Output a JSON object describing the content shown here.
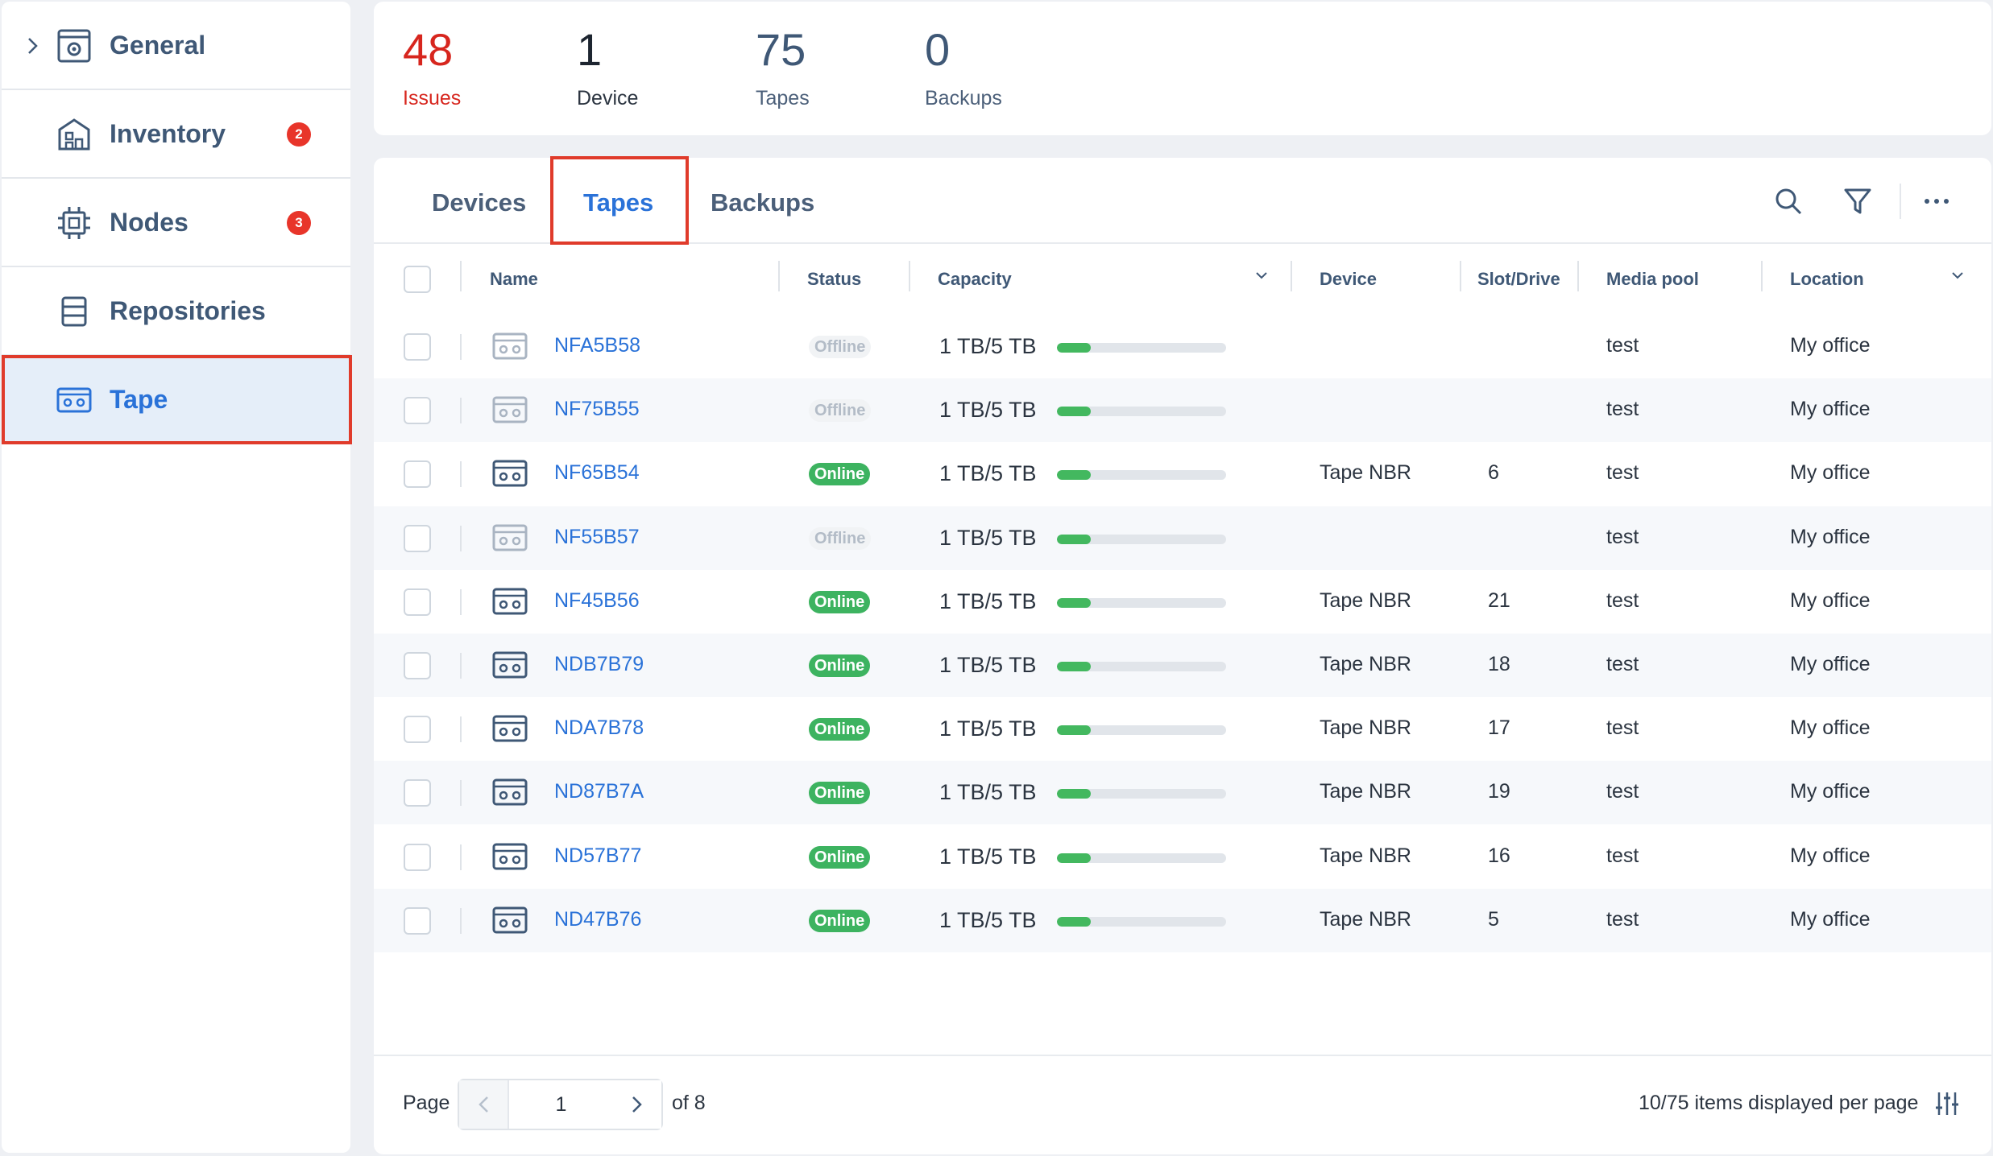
{
  "sidebar": {
    "items": [
      {
        "label": "General",
        "icon": "settings-panel-icon",
        "badge": null,
        "expandable": true
      },
      {
        "label": "Inventory",
        "icon": "building-icon",
        "badge": "2"
      },
      {
        "label": "Nodes",
        "icon": "chip-icon",
        "badge": "3"
      },
      {
        "label": "Repositories",
        "icon": "database-icon",
        "badge": null
      },
      {
        "label": "Tape",
        "icon": "tape-icon",
        "badge": null,
        "active": true
      }
    ]
  },
  "summary": {
    "issues": {
      "value": "48",
      "label": "Issues",
      "color": "#d7261e"
    },
    "device": {
      "value": "1",
      "label": "Device"
    },
    "tapes": {
      "value": "75",
      "label": "Tapes"
    },
    "backups": {
      "value": "0",
      "label": "Backups"
    }
  },
  "tabs": [
    "Devices",
    "Tapes",
    "Backups"
  ],
  "active_tab": "Tapes",
  "toolbar": {
    "search": "search-icon",
    "filter": "filter-icon",
    "more": "more-icon"
  },
  "table": {
    "columns": {
      "name": "Name",
      "status": "Status",
      "capacity": "Capacity",
      "device": "Device",
      "slot": "Slot/Drive",
      "pool": "Media pool",
      "location": "Location"
    },
    "rows": [
      {
        "name": "NFA5B58",
        "status": "Offline",
        "capacity": "1 TB/5 TB",
        "used": 0.2,
        "device": "",
        "slot": "",
        "pool": "test",
        "location": "My office"
      },
      {
        "name": "NF75B55",
        "status": "Offline",
        "capacity": "1 TB/5 TB",
        "used": 0.2,
        "device": "",
        "slot": "",
        "pool": "test",
        "location": "My office"
      },
      {
        "name": "NF65B54",
        "status": "Online",
        "capacity": "1 TB/5 TB",
        "used": 0.2,
        "device": "Tape NBR",
        "slot": "6",
        "pool": "test",
        "location": "My office"
      },
      {
        "name": "NF55B57",
        "status": "Offline",
        "capacity": "1 TB/5 TB",
        "used": 0.2,
        "device": "",
        "slot": "",
        "pool": "test",
        "location": "My office"
      },
      {
        "name": "NF45B56",
        "status": "Online",
        "capacity": "1 TB/5 TB",
        "used": 0.2,
        "device": "Tape NBR",
        "slot": "21",
        "pool": "test",
        "location": "My office"
      },
      {
        "name": "NDB7B79",
        "status": "Online",
        "capacity": "1 TB/5 TB",
        "used": 0.2,
        "device": "Tape NBR",
        "slot": "18",
        "pool": "test",
        "location": "My office"
      },
      {
        "name": "NDA7B78",
        "status": "Online",
        "capacity": "1 TB/5 TB",
        "used": 0.2,
        "device": "Tape NBR",
        "slot": "17",
        "pool": "test",
        "location": "My office"
      },
      {
        "name": "ND87B7A",
        "status": "Online",
        "capacity": "1 TB/5 TB",
        "used": 0.2,
        "device": "Tape NBR",
        "slot": "19",
        "pool": "test",
        "location": "My office"
      },
      {
        "name": "ND57B77",
        "status": "Online",
        "capacity": "1 TB/5 TB",
        "used": 0.2,
        "device": "Tape NBR",
        "slot": "16",
        "pool": "test",
        "location": "My office"
      },
      {
        "name": "ND47B76",
        "status": "Online",
        "capacity": "1 TB/5 TB",
        "used": 0.2,
        "device": "Tape NBR",
        "slot": "5",
        "pool": "test",
        "location": "My office"
      }
    ]
  },
  "pagination": {
    "page_label": "Page",
    "current": "1",
    "of_label": "of 8",
    "per_page_text": "10/75 items displayed per page"
  },
  "colors": {
    "accent": "#2a72d8",
    "highlight": "#e03b2b",
    "online": "#3db360",
    "badge": "#e8352a"
  }
}
